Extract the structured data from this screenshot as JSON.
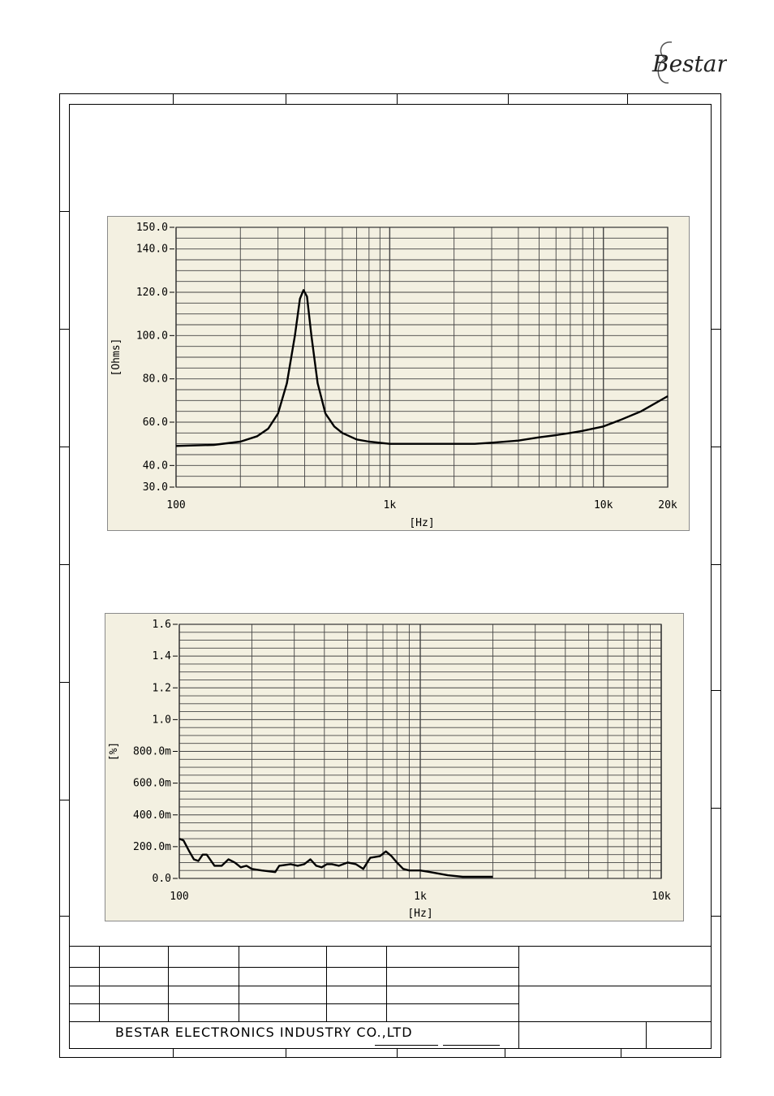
{
  "brand": {
    "logo_text": "Bestar"
  },
  "footer": {
    "company": "BESTAR ELECTRONICS INDUSTRY CO.,LTD"
  },
  "colors": {
    "chart_bg": "#f3f0e1",
    "grid": "#444444",
    "curve": "#000000"
  },
  "chart_data": [
    {
      "type": "line",
      "title": "",
      "xlabel": "[Hz]",
      "ylabel": "[Ohms]",
      "xscale": "log",
      "xlim": [
        100,
        20000
      ],
      "ylim": [
        30,
        150
      ],
      "x_ticks": [
        100,
        1000,
        10000,
        20000
      ],
      "x_tick_labels": [
        "100",
        "1k",
        "10k",
        "20k"
      ],
      "y_ticks": [
        30,
        40,
        60,
        80,
        100,
        120,
        140,
        150
      ],
      "y_tick_labels": [
        "30.0",
        "40.0",
        "60.0",
        "80.0",
        "100.0",
        "120.0",
        "140.0",
        "150.0"
      ],
      "grid": true,
      "series": [
        {
          "x": [
            100,
            150,
            200,
            240,
            270,
            300,
            330,
            360,
            380,
            395,
            410,
            430,
            460,
            500,
            550,
            600,
            700,
            800,
            1000,
            1500,
            2000,
            2500,
            3000,
            4000,
            5000,
            6000,
            7000,
            8000,
            10000,
            12000,
            15000,
            20000
          ],
          "y": [
            49,
            49.5,
            51,
            53.5,
            57,
            64,
            78,
            100,
            117,
            121,
            118,
            100,
            78,
            64,
            58,
            55,
            52,
            51,
            50,
            50,
            50,
            50,
            50.5,
            51.5,
            53,
            54,
            55,
            56,
            58,
            61,
            65,
            72
          ]
        }
      ]
    },
    {
      "type": "line",
      "title": "",
      "xlabel": "[Hz]",
      "ylabel": "[%]",
      "xscale": "log",
      "xlim": [
        100,
        10000
      ],
      "ylim": [
        0,
        1.6
      ],
      "x_ticks": [
        100,
        1000,
        10000
      ],
      "x_tick_labels": [
        "100",
        "1k",
        "10k"
      ],
      "y_ticks": [
        0,
        0.2,
        0.4,
        0.6,
        0.8,
        1.0,
        1.2,
        1.4,
        1.6
      ],
      "y_tick_labels": [
        "0.0",
        "200.0m",
        "400.0m",
        "600.0m",
        "800.0m",
        "1.0",
        "1.2",
        "1.4",
        "1.6"
      ],
      "grid": true,
      "series": [
        {
          "x": [
            100,
            104,
            110,
            115,
            120,
            125,
            130,
            140,
            150,
            160,
            170,
            180,
            190,
            200,
            220,
            250,
            260,
            290,
            310,
            330,
            350,
            370,
            390,
            410,
            430,
            460,
            500,
            540,
            580,
            620,
            680,
            720,
            760,
            800,
            850,
            900,
            1000,
            1100,
            1300,
            1500,
            2000
          ],
          "y": [
            0.25,
            0.24,
            0.17,
            0.12,
            0.11,
            0.15,
            0.15,
            0.08,
            0.08,
            0.12,
            0.1,
            0.07,
            0.08,
            0.06,
            0.05,
            0.04,
            0.08,
            0.09,
            0.08,
            0.09,
            0.12,
            0.08,
            0.07,
            0.09,
            0.09,
            0.08,
            0.1,
            0.09,
            0.06,
            0.13,
            0.14,
            0.17,
            0.14,
            0.1,
            0.06,
            0.05,
            0.05,
            0.04,
            0.02,
            0.01,
            0.01
          ]
        }
      ]
    }
  ]
}
